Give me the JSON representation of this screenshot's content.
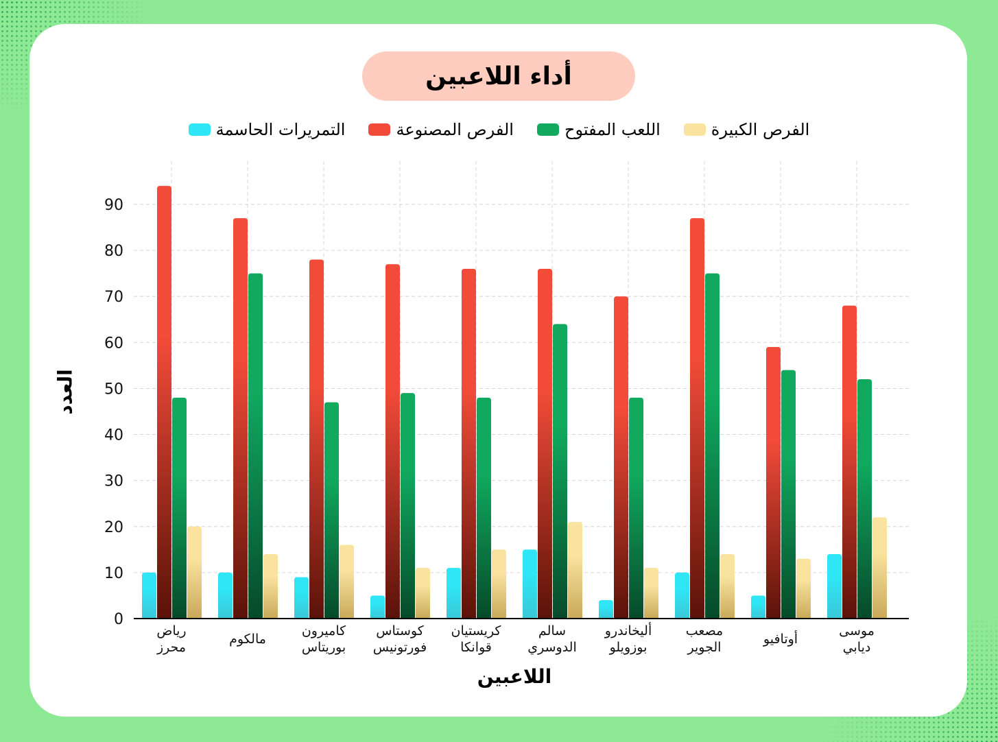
{
  "chart_data": {
    "type": "bar",
    "title": "أداء اللاعبين",
    "xlabel": "اللاعبين",
    "ylabel": "العدد",
    "ylim": [
      0,
      95
    ],
    "yticks": [
      0,
      10,
      20,
      30,
      40,
      50,
      60,
      70,
      80,
      90
    ],
    "grid": true,
    "legend_position": "top",
    "categories": [
      [
        "رياض",
        "محرز"
      ],
      [
        "مالكوم"
      ],
      [
        "كاميرون",
        "بوريتاس"
      ],
      [
        "كوستاس",
        "فورتونيس"
      ],
      [
        "كريستيان",
        "قوانكا"
      ],
      [
        "سالم",
        "الدوسري"
      ],
      [
        "أليخاندرو",
        "بوزويلو"
      ],
      [
        "مصعب",
        "الجوير"
      ],
      [
        "أوتافيو"
      ],
      [
        "موسى",
        "ديابي"
      ]
    ],
    "series": [
      {
        "name": "التمريرات الحاسمة",
        "color": "#2ee6f5",
        "values": [
          10,
          10,
          9,
          5,
          11,
          15,
          4,
          10,
          5,
          14
        ]
      },
      {
        "name": "الفرص المصنوعة",
        "color": "#f24b39",
        "values": [
          94,
          87,
          78,
          77,
          76,
          76,
          70,
          87,
          59,
          68
        ]
      },
      {
        "name": "اللعب المفتوح",
        "color": "#10a95e",
        "values": [
          48,
          75,
          47,
          49,
          48,
          64,
          48,
          75,
          54,
          52
        ]
      },
      {
        "name": "الفرص الكبيرة",
        "color": "#f9e39e",
        "values": [
          20,
          14,
          16,
          11,
          15,
          21,
          11,
          14,
          13,
          22
        ]
      }
    ],
    "legend_order": [
      3,
      2,
      1,
      0
    ]
  }
}
